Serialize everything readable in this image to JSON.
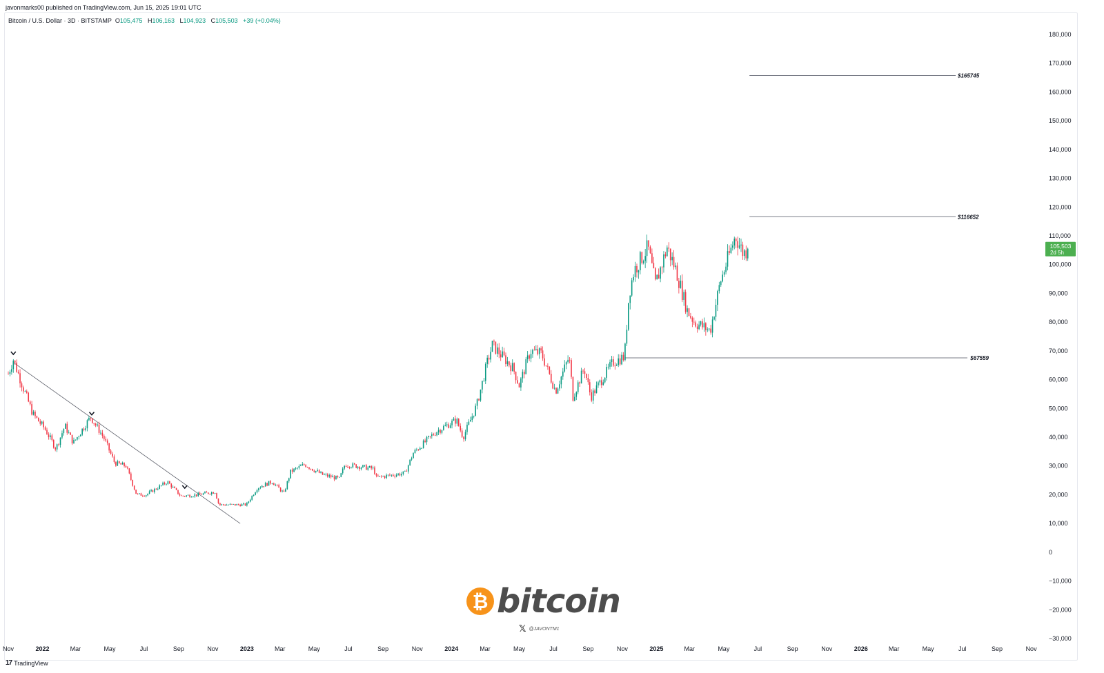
{
  "header": {
    "published": "javonmarks00 published on TradingView.com, Jun 15, 2025 19:01 UTC"
  },
  "legend": {
    "symbol": "Bitcoin / U.S. Dollar · 3D · BITSTAMP",
    "o_label": "O",
    "o_value": "105,475",
    "h_label": "H",
    "h_value": "106,163",
    "l_label": "L",
    "l_value": "104,923",
    "c_label": "C",
    "c_value": "105,503",
    "change": "+39 (+0.04%)"
  },
  "price_badge": {
    "price": "105,503",
    "countdown": "2d 5h"
  },
  "footer": {
    "brand": "TradingView",
    "logo": "tradingview-logo"
  },
  "watermark": {
    "word": "bitcoin",
    "coin_symbol": "₿",
    "handle": "@JAVONTM1",
    "x_icon": "x-logo-icon"
  },
  "colors": {
    "up": "#089981",
    "down": "#f23645",
    "badge": "#4caf50",
    "line": "#787b86"
  },
  "chart_data": {
    "type": "candlestick",
    "title": "",
    "xlabel": "",
    "ylabel": "",
    "ylim": [
      -30000,
      180000
    ],
    "y_ticks": [
      180000,
      170000,
      160000,
      150000,
      140000,
      130000,
      120000,
      110000,
      100000,
      90000,
      80000,
      70000,
      60000,
      50000,
      40000,
      30000,
      20000,
      10000,
      0,
      -10000,
      -20000,
      -30000
    ],
    "y_tick_labels": [
      "180,000",
      "170,000",
      "160,000",
      "150,000",
      "140,000",
      "130,000",
      "120,000",
      "110,000",
      "100,000",
      "90,000",
      "80,000",
      "70,000",
      "60,000",
      "50,000",
      "40,000",
      "30,000",
      "20,000",
      "10,000",
      "0",
      "−10,000",
      "−20,000",
      "−30,000"
    ],
    "x_range": [
      "2021-11-01",
      "2026-11-20"
    ],
    "x_ticks": [
      {
        "date": "2021-11-01",
        "label": "Nov"
      },
      {
        "date": "2022-01-01",
        "label": "2022",
        "major": true
      },
      {
        "date": "2022-03-01",
        "label": "Mar"
      },
      {
        "date": "2022-05-01",
        "label": "May"
      },
      {
        "date": "2022-07-01",
        "label": "Jul"
      },
      {
        "date": "2022-09-01",
        "label": "Sep"
      },
      {
        "date": "2022-11-01",
        "label": "Nov"
      },
      {
        "date": "2023-01-01",
        "label": "2023",
        "major": true
      },
      {
        "date": "2023-03-01",
        "label": "Mar"
      },
      {
        "date": "2023-05-01",
        "label": "May"
      },
      {
        "date": "2023-07-01",
        "label": "Jul"
      },
      {
        "date": "2023-09-01",
        "label": "Sep"
      },
      {
        "date": "2023-11-01",
        "label": "Nov"
      },
      {
        "date": "2024-01-01",
        "label": "2024",
        "major": true
      },
      {
        "date": "2024-03-01",
        "label": "Mar"
      },
      {
        "date": "2024-05-01",
        "label": "May"
      },
      {
        "date": "2024-07-01",
        "label": "Jul"
      },
      {
        "date": "2024-09-01",
        "label": "Sep"
      },
      {
        "date": "2024-11-01",
        "label": "Nov"
      },
      {
        "date": "2025-01-01",
        "label": "2025",
        "major": true
      },
      {
        "date": "2025-03-01",
        "label": "Mar"
      },
      {
        "date": "2025-05-01",
        "label": "May"
      },
      {
        "date": "2025-07-01",
        "label": "Jul"
      },
      {
        "date": "2025-09-01",
        "label": "Sep"
      },
      {
        "date": "2025-11-01",
        "label": "Nov"
      },
      {
        "date": "2026-01-01",
        "label": "2026",
        "major": true
      },
      {
        "date": "2026-03-01",
        "label": "Mar"
      },
      {
        "date": "2026-05-01",
        "label": "May"
      },
      {
        "date": "2026-07-01",
        "label": "Jul"
      },
      {
        "date": "2026-09-01",
        "label": "Sep"
      },
      {
        "date": "2026-11-01",
        "label": "Nov"
      }
    ],
    "series_anchors": [
      [
        "2021-11-01",
        62000
      ],
      [
        "2021-11-10",
        67000
      ],
      [
        "2021-11-28",
        57000
      ],
      [
        "2021-12-15",
        48000
      ],
      [
        "2022-01-05",
        43000
      ],
      [
        "2022-01-25",
        36000
      ],
      [
        "2022-02-10",
        44000
      ],
      [
        "2022-02-25",
        38000
      ],
      [
        "2022-03-28",
        47000
      ],
      [
        "2022-04-20",
        40000
      ],
      [
        "2022-05-10",
        31000
      ],
      [
        "2022-05-30",
        30000
      ],
      [
        "2022-06-18",
        20000
      ],
      [
        "2022-07-05",
        20000
      ],
      [
        "2022-08-12",
        24500
      ],
      [
        "2022-09-05",
        19500
      ],
      [
        "2022-10-05",
        20000
      ],
      [
        "2022-11-05",
        21000
      ],
      [
        "2022-11-12",
        16500
      ],
      [
        "2022-12-31",
        16500
      ],
      [
        "2023-01-20",
        22500
      ],
      [
        "2023-02-15",
        24500
      ],
      [
        "2023-03-08",
        20500
      ],
      [
        "2023-03-20",
        28000
      ],
      [
        "2023-04-14",
        30500
      ],
      [
        "2023-05-15",
        27000
      ],
      [
        "2023-06-15",
        25500
      ],
      [
        "2023-06-25",
        30500
      ],
      [
        "2023-07-15",
        30000
      ],
      [
        "2023-08-15",
        29000
      ],
      [
        "2023-08-20",
        26000
      ],
      [
        "2023-10-10",
        27500
      ],
      [
        "2023-10-25",
        34500
      ],
      [
        "2023-12-05",
        42000
      ],
      [
        "2024-01-10",
        46000
      ],
      [
        "2024-01-22",
        40000
      ],
      [
        "2024-02-15",
        51000
      ],
      [
        "2024-03-05",
        66000
      ],
      [
        "2024-03-14",
        72000
      ],
      [
        "2024-04-20",
        64000
      ],
      [
        "2024-05-01",
        58000
      ],
      [
        "2024-05-21",
        70000
      ],
      [
        "2024-06-10",
        69000
      ],
      [
        "2024-07-05",
        56000
      ],
      [
        "2024-07-29",
        68000
      ],
      [
        "2024-08-05",
        54000
      ],
      [
        "2024-08-25",
        64000
      ],
      [
        "2024-09-06",
        54000
      ],
      [
        "2024-10-15",
        66000
      ],
      [
        "2024-11-05",
        68000
      ],
      [
        "2024-11-13",
        90000
      ],
      [
        "2024-11-22",
        98000
      ],
      [
        "2024-12-17",
        106000
      ],
      [
        "2024-12-30",
        93000
      ],
      [
        "2025-01-20",
        106000
      ],
      [
        "2025-02-05",
        98000
      ],
      [
        "2025-02-25",
        84000
      ],
      [
        "2025-03-10",
        80000
      ],
      [
        "2025-04-07",
        77000
      ],
      [
        "2025-04-25",
        94000
      ],
      [
        "2025-05-22",
        110000
      ],
      [
        "2025-06-05",
        104000
      ],
      [
        "2025-06-15",
        105503
      ]
    ],
    "support_line": {
      "value": 67559,
      "label": "$67559",
      "from": "2024-11-05"
    },
    "target_lines": [
      {
        "value": 116652,
        "label": "$116652"
      },
      {
        "value": 165745,
        "label": "$165745"
      }
    ],
    "target_line_from": "2025-06-16",
    "trendline": {
      "from": [
        "2021-11-10",
        66000
      ],
      "to": [
        "2022-12-20",
        10000
      ]
    },
    "markers": [
      {
        "date": "2021-11-10",
        "price": 69000,
        "label": "⌄"
      },
      {
        "date": "2022-03-30",
        "price": 48000,
        "label": "⌄"
      },
      {
        "date": "2022-09-12",
        "price": 22500,
        "label": "⌄"
      }
    ],
    "last_price": 105503
  }
}
